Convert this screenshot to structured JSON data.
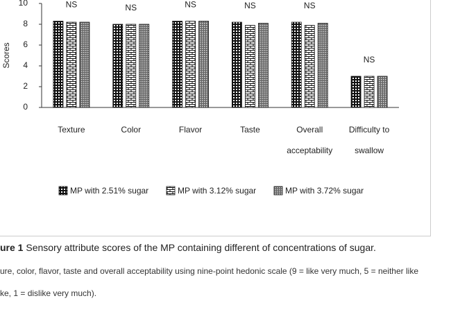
{
  "chart_data": {
    "type": "bar",
    "y_label": "Scores",
    "categories": [
      "Texture",
      "Color",
      "Flavor",
      "Taste",
      "Overall acceptability",
      "Difficulty to swallow"
    ],
    "series": [
      {
        "name": "MP with 2.51% sugar",
        "color": "#111111",
        "values": [
          8.3,
          8.0,
          8.3,
          8.2,
          8.2,
          3.0
        ]
      },
      {
        "name": "MP with 3.12% sugar",
        "color": "#ffffff",
        "values": [
          8.2,
          8.0,
          8.3,
          7.9,
          7.9,
          3.0
        ]
      },
      {
        "name": "MP with 3.72% sugar",
        "color": "#666666",
        "values": [
          8.2,
          8.0,
          8.3,
          8.1,
          8.1,
          3.0
        ]
      }
    ],
    "annotations": [
      "NS",
      "NS",
      "NS",
      "NS",
      "NS",
      "NS"
    ],
    "ylim": [
      0,
      10
    ],
    "yticks": [
      0,
      2,
      4,
      6,
      8,
      10
    ],
    "caption_label": "ure 1",
    "caption": "Sensory attribute scores of the MP containing different of concentrations of sugar.",
    "notes": [
      "ure, color, flavor, taste and overall acceptability using nine-point hedonic scale (9 = like very much, 5 = neither like",
      "ke, 1 = dislike very much)."
    ]
  }
}
